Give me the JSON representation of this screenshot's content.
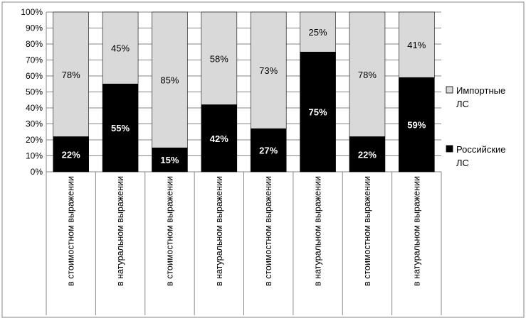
{
  "chart_data": {
    "type": "bar",
    "stacked": true,
    "categories": [
      "в стоимостном выражении",
      "в натуральном выражении",
      "в стоимостном выражении",
      "в натуральном выражении",
      "в стоимостном выражении",
      "в натуральном выражении",
      "в стоимостном выражении",
      "в натуральном выражении"
    ],
    "series": [
      {
        "name": "Российские ЛС",
        "values": [
          22,
          55,
          15,
          42,
          27,
          75,
          22,
          59
        ],
        "labels": [
          "22%",
          "55%",
          "15%",
          "42%",
          "27%",
          "75%",
          "22%",
          "59%"
        ],
        "color": "#000000",
        "label_color": "#ffffff"
      },
      {
        "name": "Импортные ЛС",
        "values": [
          78,
          45,
          85,
          58,
          73,
          25,
          78,
          41
        ],
        "labels": [
          "78%",
          "45%",
          "85%",
          "58%",
          "73%",
          "25%",
          "78%",
          "41%"
        ],
        "color": "#d9d9d9",
        "label_color": "#000000"
      }
    ],
    "ylim": [
      0,
      100
    ],
    "yticks": [
      "0%",
      "10%",
      "20%",
      "30%",
      "40%",
      "50%",
      "60%",
      "70%",
      "80%",
      "90%",
      "100%"
    ],
    "grid": true,
    "legend": {
      "placement": "right",
      "entries": [
        {
          "line1": "Импортные",
          "line2": "ЛС",
          "color": "#d9d9d9"
        },
        {
          "line1": "Российские",
          "line2": "ЛС",
          "color": "#000000"
        }
      ]
    }
  }
}
